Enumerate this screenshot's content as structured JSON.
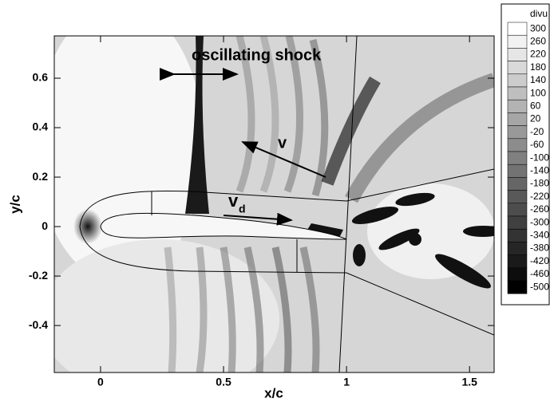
{
  "chart_data": {
    "type": "contour",
    "xlabel": "x/c",
    "ylabel": "y/c",
    "xlim": [
      -0.188,
      1.6
    ],
    "ylim": [
      -0.59,
      0.771
    ],
    "xticks": [
      0,
      0.5,
      1,
      1.5
    ],
    "yticks": [
      -0.4,
      -0.2,
      0,
      0.2,
      0.4,
      0.6
    ],
    "annotations": [
      {
        "text": "oscillating shock"
      },
      {
        "text": "v"
      },
      {
        "text": "v",
        "subscript": "d"
      }
    ],
    "colorbar": {
      "title": "divu",
      "levels": [
        300,
        260,
        220,
        180,
        140,
        100,
        60,
        20,
        -20,
        -60,
        -100,
        -140,
        -180,
        -220,
        -260,
        -300,
        -340,
        -380,
        -420,
        -460,
        -500
      ],
      "colors": [
        "#ffffff",
        "#000000"
      ]
    }
  }
}
